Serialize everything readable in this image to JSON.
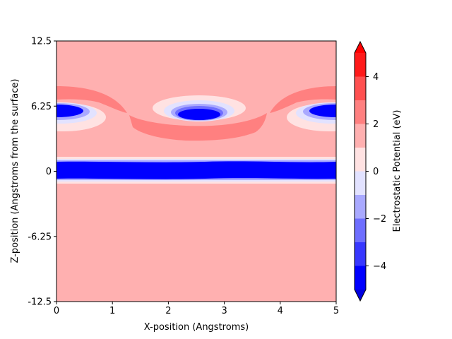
{
  "chart_data": {
    "type": "contourf",
    "title": "",
    "xlabel": "X-position (Angstroms)",
    "ylabel": "Z-position (Angstroms from the surface)",
    "xlim": [
      0,
      5
    ],
    "ylim": [
      -12.5,
      12.5
    ],
    "x_ticks": [
      0,
      1,
      2,
      3,
      4,
      5
    ],
    "x_tick_labels": [
      "0",
      "1",
      "2",
      "3",
      "4",
      "5"
    ],
    "y_ticks": [
      -12.5,
      -6.25,
      0,
      6.25,
      12.5
    ],
    "y_tick_labels": [
      "-12.5",
      "-6.25",
      "0",
      "6.25",
      "12.5"
    ],
    "grid": false,
    "colormap": "bwr",
    "colorbar": {
      "label": "Electrostatic Potential (eV)",
      "extend": "both",
      "range": [
        -5,
        5
      ],
      "levels": [
        -5,
        -4,
        -3,
        -2,
        -1,
        0,
        1,
        2,
        3,
        4,
        5
      ],
      "ticks": [
        -4,
        -2,
        0,
        2,
        4
      ],
      "tick_labels": [
        "−4",
        "−2",
        "0",
        "2",
        "4"
      ],
      "colors": [
        "#0000ff",
        "#3737ff",
        "#6e6eff",
        "#a9a9ff",
        "#e2e2ff",
        "#ffe2e2",
        "#ffb0b0",
        "#ff8080",
        "#ff5050",
        "#ff1a1a"
      ],
      "under_color": "#0000e0",
      "over_color": "#ff0000"
    },
    "background_level_eV": 1.5,
    "features": [
      {
        "name": "surface layer",
        "x_range": [
          0,
          5
        ],
        "z_center": 0,
        "z_half_width": 1.2,
        "min_level": -5
      },
      {
        "name": "adsorbate pocket",
        "x_center": 3.05,
        "z_center": 5.2,
        "min_level": -5
      },
      {
        "name": "edge pocket",
        "x_center": 0.0,
        "z_center": 5.8,
        "min_level": -5
      },
      {
        "name": "edge pocket",
        "x_center": 5.0,
        "z_center": 5.8,
        "min_level": -5
      },
      {
        "name": "positive arc",
        "x_range": [
          1.3,
          3.8
        ],
        "z_range": [
          2.8,
          5.5
        ],
        "level": 2.5
      },
      {
        "name": "positive arc",
        "x_range": [
          0.0,
          1.2
        ],
        "z_range": [
          6.0,
          8.3
        ],
        "level": 2.5
      },
      {
        "name": "positive arc",
        "x_range": [
          3.9,
          5.0
        ],
        "z_range": [
          6.0,
          8.3
        ],
        "level": 2.5
      }
    ]
  }
}
